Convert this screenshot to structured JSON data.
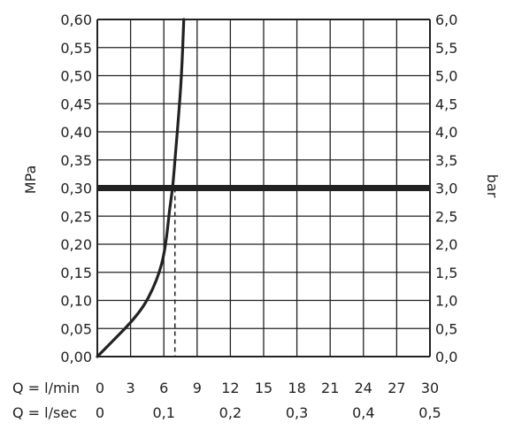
{
  "chart_data": {
    "type": "line",
    "title": "",
    "x_axis": {
      "min": 0,
      "max": 30,
      "ticks_lmin": [
        0,
        3,
        6,
        9,
        12,
        15,
        18,
        21,
        24,
        27,
        30
      ],
      "ticks_lsec": [
        {
          "value": 0,
          "label": "0"
        },
        {
          "value": 6,
          "label": "0,1"
        },
        {
          "value": 12,
          "label": "0,2"
        },
        {
          "value": 18,
          "label": "0,3"
        },
        {
          "value": 24,
          "label": "0,4"
        },
        {
          "value": 30,
          "label": "0,5"
        }
      ],
      "row1_label": "Q = l/min",
      "row2_label": "Q = l/sec"
    },
    "y_left": {
      "label": "MPa",
      "min": 0,
      "max": 0.6,
      "ticks": [
        "0,00",
        "0,05",
        "0,10",
        "0,15",
        "0,20",
        "0,25",
        "0,30",
        "0,35",
        "0,40",
        "0,45",
        "0,50",
        "0,55",
        "0,60"
      ]
    },
    "y_right": {
      "label": "bar",
      "min": 0,
      "max": 6,
      "ticks": [
        "0,0",
        "0,5",
        "1,0",
        "1,5",
        "2,0",
        "2,5",
        "3,0",
        "3,5",
        "4,0",
        "4,5",
        "5,0",
        "5,5",
        "6,0"
      ]
    },
    "grid": true,
    "series": [
      {
        "x": [
          0,
          1.5,
          3,
          4.2,
          5.0,
          5.6,
          6.0,
          6.3,
          6.5,
          6.8,
          7.0,
          7.3,
          7.6,
          7.8
        ],
        "y": [
          0,
          0.03,
          0.06,
          0.09,
          0.12,
          0.15,
          0.18,
          0.22,
          0.26,
          0.3,
          0.35,
          0.42,
          0.5,
          0.6
        ]
      }
    ],
    "reference_line": {
      "y": 0.3
    },
    "reference_drop": {
      "x": 7.0,
      "y": 0.3
    }
  }
}
